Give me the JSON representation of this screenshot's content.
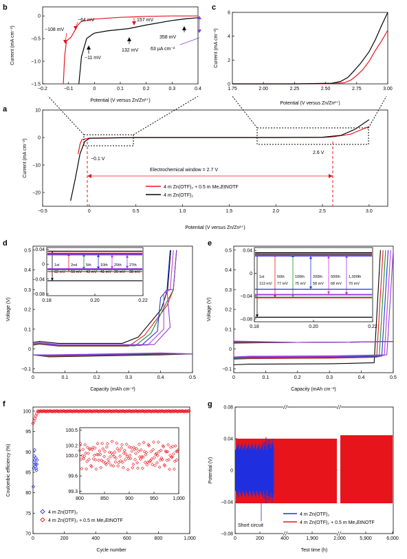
{
  "colors": {
    "red": "#e8141b",
    "black": "#000000",
    "blue": "#1f2fe0",
    "magenta": "#c43bd8",
    "green": "#1a8a2a",
    "purple": "#8a3fd0"
  },
  "panels": {
    "b": {
      "label": "b",
      "xlabel": "Potential (V versus Zn/Zn²⁺)",
      "ylabel": "Current (mA cm⁻²)",
      "xticks": [
        "−0.2",
        "−0.1",
        "0",
        "0.1",
        "0.2",
        "0.3",
        "0.4"
      ],
      "yticks": [
        "0",
        "−0.5",
        "−1.0",
        "−1.5"
      ],
      "annotations": [
        "−108 mV",
        "−64 mV",
        "157 mV",
        "−11 mV",
        "132 mV",
        "358 mV",
        "63 µA cm⁻²"
      ]
    },
    "c": {
      "label": "c",
      "xlabel": "Potential (V versus Zn/Zn²⁺)",
      "ylabel": "Current (mA cm⁻²)",
      "xticks": [
        "1.75",
        "2.00",
        "2.25",
        "2.50",
        "2.75",
        "3.00"
      ],
      "yticks": [
        "0",
        "2",
        "4",
        "6"
      ]
    },
    "a": {
      "label": "a",
      "xlabel": "Potential (V versus Zn/Zn²⁺)",
      "ylabel": "Current (mA cm⁻²)",
      "xticks": [
        "−0.5",
        "0",
        "0.5",
        "1.0",
        "1.5",
        "2.0",
        "2.5",
        "3.0"
      ],
      "yticks": [
        "10",
        "0",
        "−10",
        "−20"
      ],
      "annotations": [
        "−0.1 V",
        "2.6 V",
        "Electrochemical window = 2.7 V"
      ],
      "legend": [
        "4 m Zn(OTF)₂ + 0.5 m Me₃EtNOTF",
        "4 m Zn(OTF)₂"
      ]
    },
    "d": {
      "label": "d",
      "xlabel": "Capacity (mAh cm⁻²)",
      "ylabel": "Voltage (V)",
      "xticks": [
        "0",
        "0.1",
        "0.2",
        "0.3",
        "0.4",
        "0.5"
      ],
      "yticks": [
        "0.5",
        "0.4",
        "0.3",
        "0.2",
        "0.1",
        "0",
        "−0.1"
      ],
      "inset_xticks": [
        "0.18",
        "0.20",
        "0.22"
      ],
      "inset_yticks": [
        "0.04",
        "0",
        "−0.04",
        "−0.08"
      ],
      "inset_labels": [
        {
          "cycle": "1st",
          "mv": "82 mV"
        },
        {
          "cycle": "2nd",
          "mv": "50 mV"
        },
        {
          "cycle": "5th",
          "mv": "43 mV"
        },
        {
          "cycle": "10th",
          "mv": "41 mV"
        },
        {
          "cycle": "20th",
          "mv": "39 mV"
        },
        {
          "cycle": "27th",
          "mv": "38 mV"
        }
      ]
    },
    "e": {
      "label": "e",
      "xlabel": "Capacity (mAh cm⁻²)",
      "ylabel": "Voltage (V)",
      "xticks": [
        "0",
        "0.1",
        "0.2",
        "0.3",
        "0.4",
        "0.5"
      ],
      "yticks": [
        "0.5",
        "0.4",
        "0.3",
        "0.2",
        "0.1",
        "0",
        "−0.1"
      ],
      "inset_xticks": [
        "0.18",
        "0.20",
        "0.22"
      ],
      "inset_yticks": [
        "0.04",
        "0",
        "−0.04",
        "−0.08"
      ],
      "inset_labels": [
        {
          "cycle": "1st",
          "mv": "113 mV"
        },
        {
          "cycle": "50th",
          "mv": "77 mV"
        },
        {
          "cycle": "100th",
          "mv": "75 mV"
        },
        {
          "cycle": "200th",
          "mv": "58 mV"
        },
        {
          "cycle": "500th",
          "mv": "68 mV"
        },
        {
          "cycle": "1,000th",
          "mv": "70 mV"
        }
      ]
    },
    "f": {
      "label": "f",
      "xlabel": "Cycle number",
      "ylabel": "Coulombic efficiency (%)",
      "xticks": [
        "0",
        "200",
        "400",
        "600",
        "800",
        "1,000"
      ],
      "yticks": [
        "100",
        "95",
        "90",
        "85",
        "80",
        "75",
        "70"
      ],
      "inset_xticks": [
        "800",
        "850",
        "900",
        "950",
        "1,000"
      ],
      "inset_yticks": [
        "100.5",
        "100.2",
        "100.0",
        "99.6",
        "99.3"
      ],
      "legend": [
        "4 m Zn(OTF)₂",
        "4 m Zn(OTF)₂ + 0.5 m Me₃EtNOTF"
      ]
    },
    "g": {
      "label": "g",
      "xlabel": "Test time (h)",
      "ylabel": "Potential (V)",
      "xticks": [
        "0",
        "200",
        "400",
        "1,900",
        "2,000",
        "5,900",
        "6,000"
      ],
      "yticks": [
        "0.08",
        "0.04",
        "0",
        "−0.04",
        "−0.08"
      ],
      "annotations": [
        "Short circuit"
      ],
      "legend": [
        "4 m Zn(OTF)₂",
        "4 m Zn(OTF)₂ + 0.5 m Me₃EtNOTF"
      ]
    }
  },
  "chart_data": [
    {
      "panel": "b",
      "type": "line",
      "xlim": [
        -0.2,
        0.4
      ],
      "ylim": [
        -1.5,
        0.2
      ],
      "series": [
        {
          "name": "4 m Zn(OTF)₂ + 0.5 m Me₃EtNOTF",
          "x": [
            -0.12,
            -0.115,
            -0.108,
            -0.09,
            -0.064,
            -0.05,
            0,
            0.1,
            0.157,
            0.2,
            0.3,
            0.358,
            0.4
          ],
          "y": [
            -1.5,
            -0.9,
            -0.55,
            -0.47,
            -0.2,
            -0.12,
            -0.07,
            -0.03,
            -0.02,
            -0.01,
            0.0,
            0.0,
            0.0
          ]
        },
        {
          "name": "4 m Zn(OTF)₂",
          "x": [
            -0.06,
            -0.05,
            -0.03,
            -0.011,
            0.0,
            0.05,
            0.1,
            0.132,
            0.2,
            0.3,
            0.358,
            0.4
          ],
          "y": [
            -1.5,
            -0.9,
            -0.5,
            -0.42,
            -0.38,
            -0.33,
            -0.3,
            -0.28,
            -0.2,
            -0.1,
            -0.06,
            -0.04
          ]
        }
      ]
    },
    {
      "panel": "c",
      "type": "line",
      "xlim": [
        1.75,
        3.0
      ],
      "ylim": [
        0,
        6
      ],
      "series": [
        {
          "name": "4 m Zn(OTF)₂ + 0.5 m Me₃EtNOTF",
          "x": [
            1.75,
            2.25,
            2.55,
            2.65,
            2.7,
            2.75,
            2.8,
            2.85,
            2.9,
            2.95,
            3.0
          ],
          "y": [
            0.0,
            0.0,
            0.02,
            0.1,
            0.3,
            0.7,
            1.2,
            1.9,
            2.8,
            3.6,
            4.5
          ]
        },
        {
          "name": "4 m Zn(OTF)₂",
          "x": [
            1.75,
            2.25,
            2.55,
            2.62,
            2.68,
            2.72,
            2.78,
            2.85,
            2.9,
            2.95,
            3.0
          ],
          "y": [
            0.0,
            0.0,
            0.05,
            0.2,
            0.55,
            1.0,
            1.7,
            2.7,
            3.7,
            4.9,
            6.0
          ]
        }
      ]
    },
    {
      "panel": "a",
      "type": "line",
      "xlim": [
        -0.5,
        3.2
      ],
      "ylim": [
        -25,
        10
      ],
      "series": [
        {
          "name": "4 m Zn(OTF)₂ + 0.5 m Me₃EtNOTF",
          "x": [
            -0.12,
            -0.1,
            -0.08,
            0.0,
            0.5,
            1.0,
            1.5,
            2.0,
            2.5,
            2.6,
            2.8,
            3.0
          ],
          "y": [
            -6,
            -2.5,
            -0.8,
            -0.2,
            0,
            0,
            0,
            0,
            0.05,
            0.2,
            1.2,
            4.0
          ]
        },
        {
          "name": "4 m Zn(OTF)₂",
          "x": [
            -0.2,
            -0.15,
            -0.1,
            -0.05,
            0.0,
            0.5,
            1.0,
            1.5,
            2.0,
            2.5,
            2.7,
            2.85,
            3.0
          ],
          "y": [
            -23,
            -15,
            -6,
            -1.5,
            -0.3,
            0,
            0,
            0,
            0,
            0.1,
            0.8,
            3.0,
            6.5
          ]
        }
      ]
    },
    {
      "panel": "d",
      "type": "line",
      "xlim": [
        0,
        0.5
      ],
      "ylim": [
        -0.1,
        0.5
      ],
      "series": [
        {
          "name": "1st",
          "x": [
            0,
            0.02,
            0.1,
            0.3,
            0.42,
            0.44,
            0.45
          ],
          "y": [
            0.03,
            0.035,
            0.01,
            0.005,
            0.02,
            0.2,
            0.5
          ]
        },
        {
          "name": "27th",
          "x": [
            0,
            0.1,
            0.3,
            0.36,
            0.4,
            0.43,
            0.44
          ],
          "y": [
            0.02,
            0.01,
            0.02,
            0.08,
            0.2,
            0.35,
            0.5
          ]
        }
      ]
    },
    {
      "panel": "e",
      "type": "line",
      "xlim": [
        0,
        0.5
      ],
      "ylim": [
        -0.1,
        0.5
      ],
      "series": [
        {
          "name": "1st",
          "x": [
            0,
            0.05,
            0.3,
            0.46,
            0.47
          ],
          "y": [
            -0.1,
            -0.08,
            -0.08,
            -0.07,
            0.5
          ]
        },
        {
          "name": "1,000th",
          "x": [
            0,
            0.05,
            0.3,
            0.49,
            0.5
          ],
          "y": [
            0.03,
            0.03,
            0.035,
            0.04,
            0.5
          ]
        }
      ]
    },
    {
      "panel": "f",
      "type": "scatter",
      "xlim": [
        0,
        1000
      ],
      "ylim": [
        70,
        101
      ],
      "series": [
        {
          "name": "4 m Zn(OTF)₂",
          "x": [
            2,
            4,
            6,
            8,
            10,
            12,
            14,
            16,
            18,
            20,
            22,
            24,
            26
          ],
          "y": [
            81.5,
            86,
            87.5,
            89,
            90.5,
            88,
            86.5,
            87,
            88.5,
            86,
            85.5,
            87,
            88
          ]
        },
        {
          "name": "4 m Zn(OTF)₂ + 0.5 m Me₃EtNOTF",
          "x": [
            2,
            5,
            10,
            20,
            30,
            50,
            100,
            200,
            400,
            600,
            800,
            1000
          ],
          "y": [
            97,
            98.5,
            99.3,
            99.6,
            99.8,
            99.9,
            99.95,
            99.96,
            99.97,
            99.98,
            99.99,
            99.99
          ]
        }
      ]
    },
    {
      "panel": "g",
      "type": "line",
      "ylim": [
        -0.08,
        0.08
      ],
      "series": [
        {
          "name": "4 m Zn(OTF)₂",
          "x": [
            0,
            150,
            190,
            205
          ],
          "y": [
            0.03,
            0.035,
            0.04,
            0.0
          ]
        },
        {
          "name": "4 m Zn(OTF)₂ + 0.5 m Me₃EtNOTF",
          "x": [
            0,
            400,
            1900,
            2000,
            5900,
            6000
          ],
          "y": [
            0.035,
            0.038,
            0.04,
            0.042,
            0.043,
            0.043
          ]
        }
      ]
    }
  ]
}
